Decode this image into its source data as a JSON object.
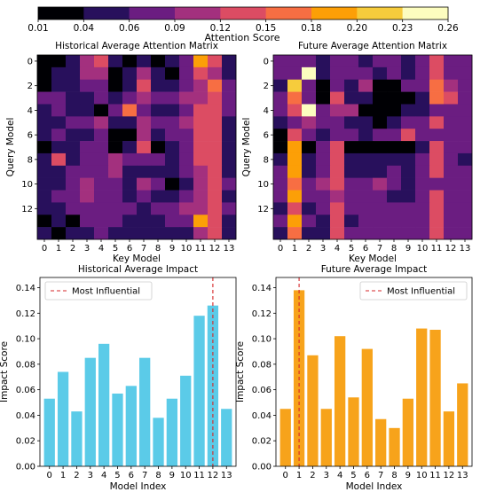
{
  "colorbar": {
    "label": "Attention Score",
    "ticks": [
      "0.01",
      "0.04",
      "0.06",
      "0.09",
      "0.12",
      "0.15",
      "0.18",
      "0.20",
      "0.23",
      "0.26"
    ],
    "colors": [
      "#000004",
      "#28105c",
      "#6b1d81",
      "#a3307e",
      "#dc4c63",
      "#f76e43",
      "#fc9f07",
      "#f6cc3c",
      "#fcfdbf"
    ]
  },
  "chart_data": [
    {
      "type": "heatmap",
      "title": "Historical Average Attention Matrix",
      "xlabel": "Key Model",
      "ylabel": "Query Model",
      "x_ticks": [
        "0",
        "1",
        "2",
        "3",
        "4",
        "5",
        "6",
        "7",
        "8",
        "9",
        "10",
        "11",
        "12",
        "13"
      ],
      "y_ticks": [
        "0",
        "2",
        "4",
        "6",
        "8",
        "10",
        "12"
      ],
      "values": [
        [
          0,
          0,
          1,
          3,
          4,
          1,
          0,
          1,
          0,
          1,
          2,
          6,
          4,
          1
        ],
        [
          0,
          1,
          1,
          3,
          3,
          0,
          1,
          3,
          1,
          0,
          2,
          4,
          3,
          1
        ],
        [
          0,
          1,
          1,
          2,
          2,
          0,
          1,
          4,
          1,
          1,
          2,
          3,
          5,
          2
        ],
        [
          2,
          2,
          1,
          1,
          2,
          1,
          2,
          3,
          2,
          2,
          3,
          3,
          4,
          2
        ],
        [
          1,
          2,
          1,
          1,
          0,
          2,
          5,
          2,
          1,
          1,
          2,
          4,
          4,
          2
        ],
        [
          1,
          1,
          2,
          2,
          3,
          1,
          1,
          3,
          2,
          2,
          3,
          4,
          4,
          1
        ],
        [
          1,
          2,
          1,
          1,
          2,
          0,
          0,
          3,
          1,
          2,
          2,
          4,
          4,
          1
        ],
        [
          0,
          1,
          1,
          2,
          2,
          0,
          1,
          4,
          0,
          1,
          2,
          4,
          4,
          1
        ],
        [
          1,
          4,
          1,
          2,
          2,
          3,
          2,
          2,
          2,
          1,
          2,
          4,
          4,
          1
        ],
        [
          1,
          1,
          2,
          2,
          2,
          3,
          1,
          1,
          1,
          1,
          2,
          3,
          4,
          1
        ],
        [
          1,
          1,
          2,
          3,
          2,
          2,
          1,
          3,
          2,
          0,
          1,
          3,
          4,
          2
        ],
        [
          1,
          2,
          2,
          3,
          2,
          2,
          1,
          2,
          1,
          1,
          2,
          3,
          4,
          1
        ],
        [
          1,
          1,
          2,
          2,
          2,
          2,
          2,
          1,
          2,
          2,
          3,
          3,
          4,
          2
        ],
        [
          0,
          1,
          0,
          2,
          2,
          2,
          1,
          1,
          1,
          2,
          2,
          6,
          4,
          1
        ],
        [
          1,
          0,
          1,
          1,
          2,
          1,
          1,
          1,
          1,
          1,
          1,
          3,
          4,
          1
        ]
      ]
    },
    {
      "type": "heatmap",
      "title": "Future Average Attention Matrix",
      "xlabel": "Key Model",
      "ylabel": "Query Model",
      "x_ticks": [
        "0",
        "1",
        "2",
        "3",
        "4",
        "5",
        "6",
        "7",
        "8",
        "9",
        "10",
        "11",
        "12",
        "13"
      ],
      "y_ticks": [
        "0",
        "2",
        "4",
        "6",
        "8",
        "10",
        "12"
      ],
      "values": [
        [
          2,
          2,
          2,
          1,
          2,
          2,
          1,
          2,
          2,
          1,
          2,
          4,
          2,
          2
        ],
        [
          2,
          2,
          8,
          1,
          2,
          2,
          2,
          1,
          2,
          1,
          2,
          4,
          2,
          2
        ],
        [
          1,
          7,
          2,
          0,
          2,
          1,
          3,
          0,
          0,
          2,
          2,
          5,
          3,
          2
        ],
        [
          2,
          5,
          2,
          0,
          4,
          1,
          1,
          0,
          0,
          0,
          1,
          5,
          4,
          2
        ],
        [
          2,
          4,
          8,
          2,
          3,
          3,
          0,
          0,
          0,
          1,
          1,
          2,
          2,
          2
        ],
        [
          1,
          2,
          3,
          2,
          2,
          1,
          1,
          0,
          1,
          2,
          2,
          4,
          2,
          2
        ],
        [
          0,
          4,
          2,
          1,
          2,
          2,
          1,
          2,
          2,
          4,
          2,
          2,
          2,
          2
        ],
        [
          0,
          6,
          0,
          2,
          4,
          0,
          0,
          0,
          0,
          0,
          1,
          4,
          2,
          2
        ],
        [
          1,
          6,
          1,
          2,
          4,
          1,
          1,
          1,
          1,
          1,
          2,
          4,
          2,
          1
        ],
        [
          2,
          6,
          1,
          2,
          4,
          1,
          1,
          1,
          2,
          1,
          2,
          4,
          2,
          2
        ],
        [
          2,
          5,
          2,
          3,
          4,
          2,
          2,
          3,
          2,
          1,
          2,
          2,
          2,
          2
        ],
        [
          2,
          6,
          2,
          2,
          3,
          2,
          2,
          2,
          1,
          1,
          2,
          4,
          2,
          2
        ],
        [
          1,
          4,
          1,
          2,
          4,
          2,
          2,
          2,
          2,
          2,
          2,
          4,
          2,
          2
        ],
        [
          2,
          6,
          2,
          1,
          4,
          1,
          2,
          2,
          2,
          2,
          2,
          4,
          2,
          2
        ],
        [
          1,
          5,
          1,
          1,
          4,
          2,
          2,
          2,
          2,
          2,
          2,
          4,
          2,
          2
        ]
      ]
    },
    {
      "type": "bar",
      "title": "Historical Average Impact",
      "xlabel": "Model Index",
      "ylabel": "Impact Score",
      "categories": [
        "0",
        "1",
        "2",
        "3",
        "4",
        "5",
        "6",
        "7",
        "8",
        "9",
        "10",
        "11",
        "12",
        "13"
      ],
      "values": [
        0.053,
        0.074,
        0.043,
        0.085,
        0.096,
        0.057,
        0.063,
        0.085,
        0.038,
        0.053,
        0.071,
        0.118,
        0.126,
        0.045
      ],
      "ylim": [
        0,
        0.148
      ],
      "y_ticks": [
        "0.00",
        "0.02",
        "0.04",
        "0.06",
        "0.08",
        "0.10",
        "0.12",
        "0.14"
      ],
      "color": "#5bcbe8",
      "legend": "Most Influential",
      "legend_position": "top-left",
      "marker_index": 12
    },
    {
      "type": "bar",
      "title": "Future Average Impact",
      "xlabel": "Model Index",
      "ylabel": "Impact Score",
      "categories": [
        "0",
        "1",
        "2",
        "3",
        "4",
        "5",
        "6",
        "7",
        "8",
        "9",
        "10",
        "11",
        "12",
        "13"
      ],
      "values": [
        0.045,
        0.138,
        0.087,
        0.045,
        0.102,
        0.054,
        0.092,
        0.037,
        0.03,
        0.053,
        0.108,
        0.107,
        0.043,
        0.065
      ],
      "ylim": [
        0,
        0.148
      ],
      "y_ticks": [
        "0.00",
        "0.02",
        "0.04",
        "0.06",
        "0.08",
        "0.10",
        "0.12",
        "0.14"
      ],
      "color": "#f7a31b",
      "legend": "Most Influential",
      "legend_position": "top-right",
      "marker_index": 1
    }
  ]
}
